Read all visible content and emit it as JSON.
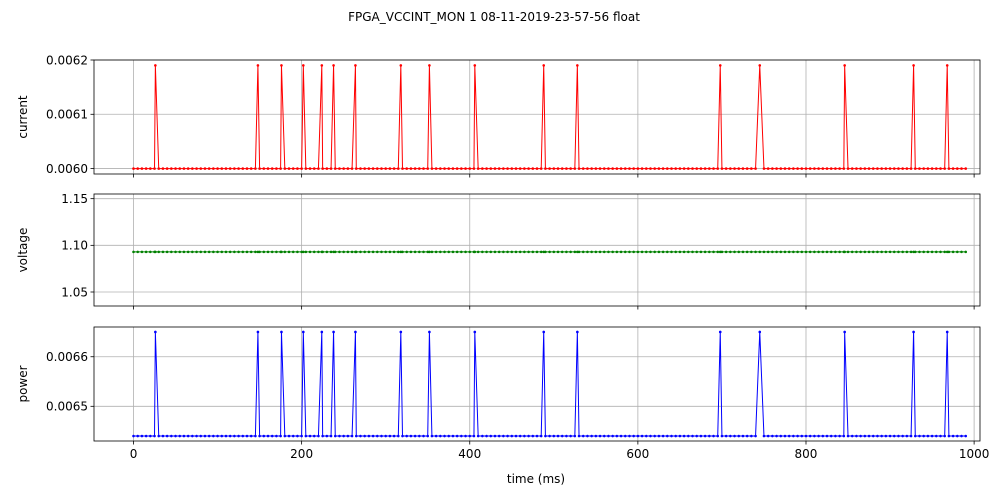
{
  "chart_data": {
    "title": "FPGA_VCCINT_MON   1   08-11-2019-23-57-56   float",
    "xlabel": "time (ms)",
    "type": "line",
    "x": [
      0,
      5,
      10,
      15,
      20,
      25,
      30,
      35,
      40,
      45,
      50,
      55,
      60,
      65,
      70,
      75,
      80,
      85,
      90,
      95,
      100,
      105,
      110,
      115,
      120,
      125,
      130,
      135,
      140,
      145,
      150,
      155,
      160,
      165,
      170,
      175,
      180,
      185,
      190,
      195,
      200,
      205,
      210,
      215,
      220,
      225,
      230,
      235,
      240,
      245,
      250,
      255,
      260,
      265,
      270,
      275,
      280,
      285,
      290,
      295,
      300,
      305,
      310,
      315,
      320,
      325,
      330,
      335,
      340,
      345,
      350,
      355,
      360,
      365,
      370,
      375,
      380,
      385,
      390,
      395,
      400,
      405,
      410,
      415,
      420,
      425,
      430,
      435,
      440,
      445,
      450,
      455,
      460,
      465,
      470,
      475,
      480,
      485,
      490,
      495,
      500,
      505,
      510,
      515,
      520,
      525,
      530,
      535,
      540,
      545,
      550,
      555,
      560,
      565,
      570,
      575,
      580,
      585,
      590,
      595,
      600,
      605,
      610,
      615,
      620,
      625,
      630,
      635,
      640,
      645,
      650,
      655,
      660,
      665,
      670,
      675,
      680,
      685,
      690,
      695,
      700,
      705,
      710,
      715,
      720,
      725,
      730,
      735,
      740,
      745,
      750,
      755,
      760,
      765,
      770,
      775,
      780,
      785,
      790,
      795,
      800,
      805,
      810,
      815,
      820,
      825,
      830,
      835,
      840,
      845,
      850,
      855,
      860,
      865,
      870,
      875,
      880,
      885,
      890,
      895,
      900,
      905,
      910,
      915,
      920,
      925,
      930,
      935,
      940,
      945,
      950,
      955,
      960,
      965,
      970,
      975,
      980,
      985,
      990
    ],
    "spike_x": [
      26,
      148,
      176,
      202,
      224,
      238,
      264,
      318,
      352,
      406,
      488,
      528,
      698,
      745,
      846,
      928,
      968
    ],
    "panels": [
      {
        "ylabel": "current",
        "color": "#ff0000",
        "low": 0.006,
        "high": 0.00619,
        "ylim": [
          0.00599,
          0.0062
        ],
        "yticks": [
          0.006,
          0.0061,
          0.0062
        ],
        "ytick_labels": [
          "0.0060",
          "0.0061",
          "0.0062"
        ]
      },
      {
        "ylabel": "voltage",
        "color": "#008000",
        "low": 1.093,
        "high": 1.093,
        "ylim": [
          1.035,
          1.155
        ],
        "yticks": [
          1.05,
          1.1,
          1.15
        ],
        "ytick_labels": [
          "1.05",
          "1.10",
          "1.15"
        ]
      },
      {
        "ylabel": "power",
        "color": "#0000ff",
        "low": 0.00644,
        "high": 0.00665,
        "ylim": [
          0.00643,
          0.00666
        ],
        "yticks": [
          0.0065,
          0.0066
        ],
        "ytick_labels": [
          "0.0065",
          "0.0066"
        ]
      }
    ],
    "xlim": [
      -47,
      1007
    ],
    "xticks": [
      0,
      200,
      400,
      600,
      800,
      1000
    ],
    "xtick_labels": [
      "0",
      "200",
      "400",
      "600",
      "800",
      "1000"
    ],
    "grid": true
  }
}
